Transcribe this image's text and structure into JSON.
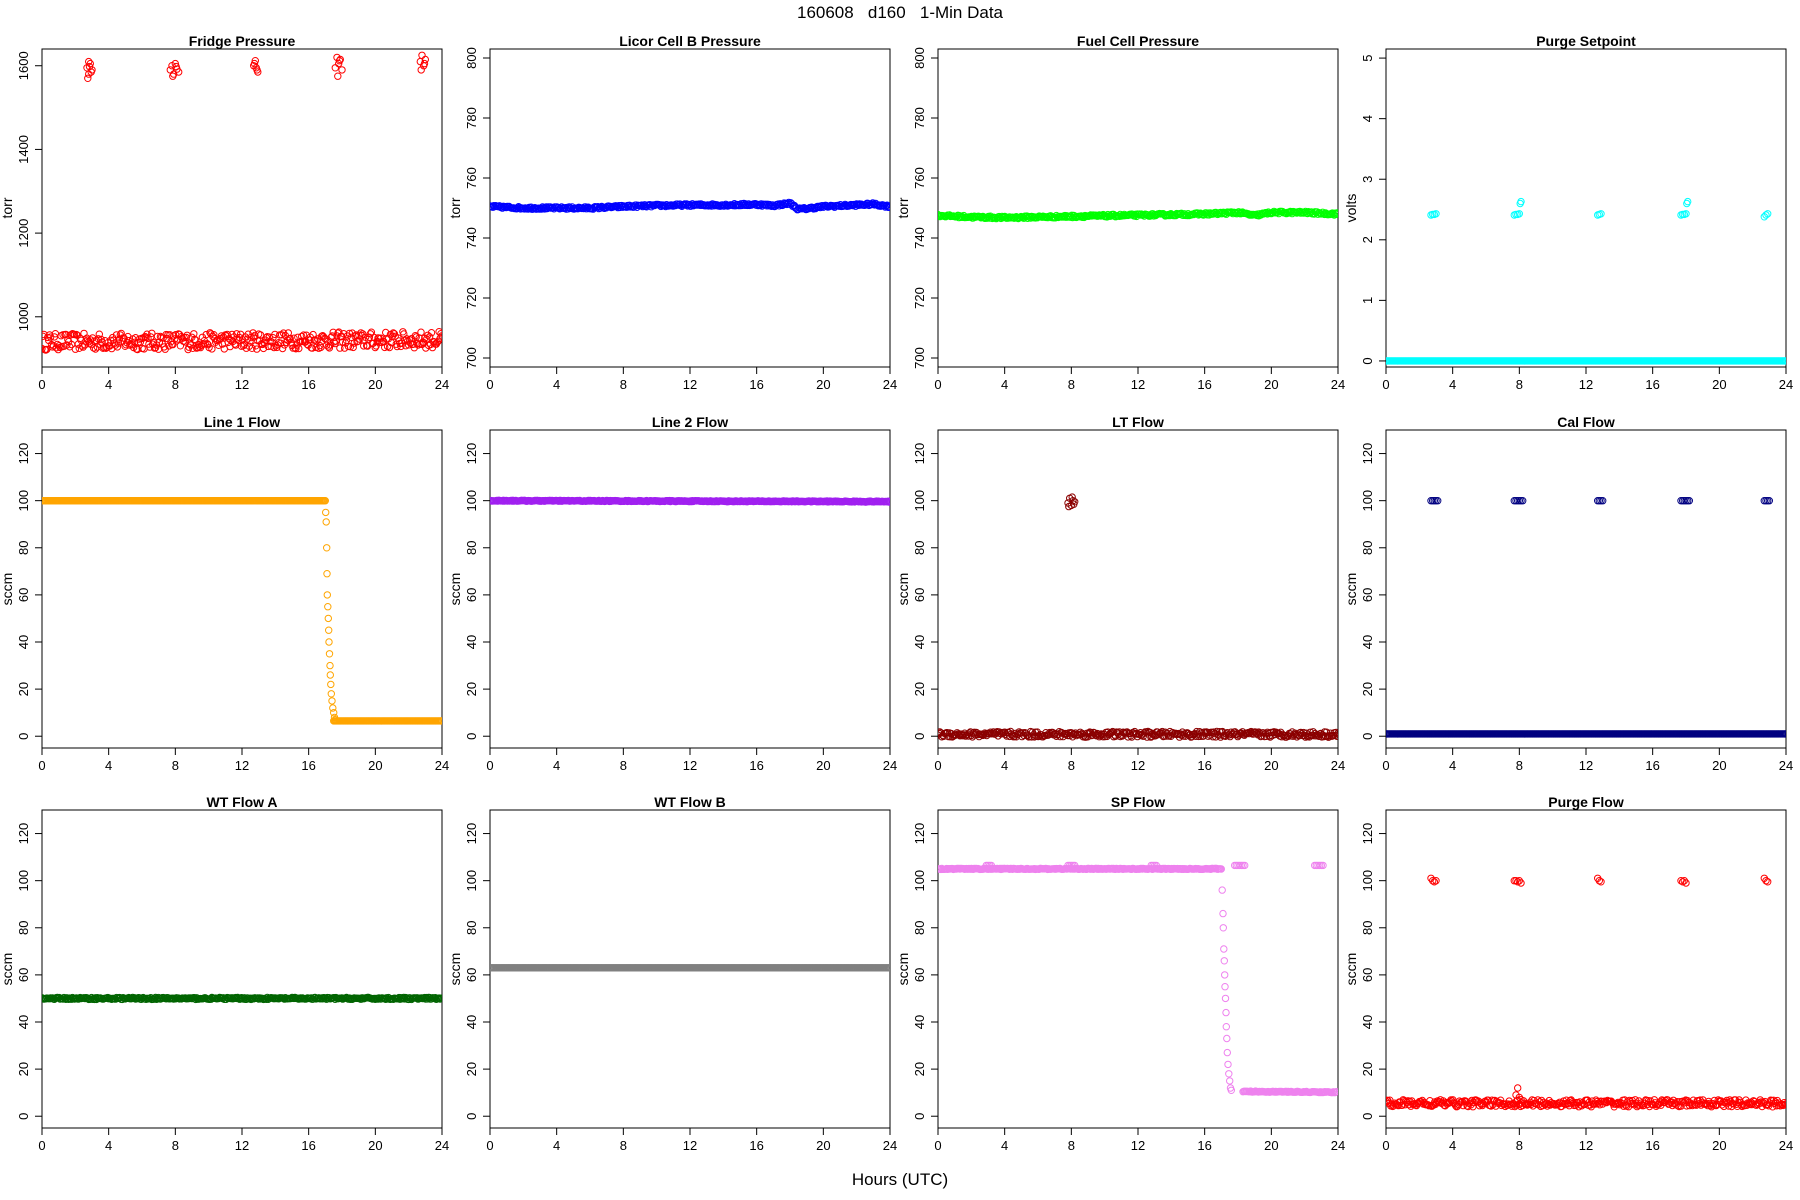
{
  "header": {
    "title": "160608   d160   1-Min Data"
  },
  "footer": {
    "xlabel": "Hours (UTC)"
  },
  "chart_data": [
    {
      "type": "scatter",
      "title": "Fridge Pressure",
      "ylabel": "torr",
      "color": "#ff0000",
      "xlim": [
        0,
        24
      ],
      "ylim": [
        880,
        1640
      ],
      "xticks": [
        0,
        4,
        8,
        12,
        16,
        20,
        24
      ],
      "yticks": [
        1000,
        1200,
        1400,
        1600
      ],
      "series": [
        {
          "x": [
            0,
            24
          ],
          "y": [
            940,
            945
          ],
          "pattern": "flat",
          "noise": 20
        },
        {
          "x": [
            2.7,
            2.8,
            2.9,
            3.0,
            2.75,
            2.85,
            2.95,
            2.8
          ],
          "y": [
            1595,
            1580,
            1605,
            1590,
            1570,
            1598,
            1585,
            1610
          ]
        },
        {
          "x": [
            7.7,
            7.8,
            7.9,
            8.0,
            8.1,
            8.2,
            7.85,
            8.05
          ],
          "y": [
            1590,
            1600,
            1580,
            1605,
            1592,
            1585,
            1575,
            1598
          ]
        },
        {
          "x": [
            12.7,
            12.8,
            12.9,
            12.75,
            12.85,
            12.95
          ],
          "y": [
            1600,
            1612,
            1590,
            1605,
            1595,
            1585
          ]
        },
        {
          "x": [
            17.6,
            17.7,
            17.8,
            17.9,
            18.0,
            17.75,
            17.85
          ],
          "y": [
            1595,
            1620,
            1605,
            1615,
            1590,
            1575,
            1612
          ]
        },
        {
          "x": [
            22.7,
            22.8,
            22.9,
            23.0,
            22.75,
            22.95
          ],
          "y": [
            1610,
            1625,
            1600,
            1615,
            1590,
            1605
          ]
        }
      ]
    },
    {
      "type": "scatter",
      "title": "Licor Cell B Pressure",
      "ylabel": "torr",
      "color": "#0000ff",
      "xlim": [
        0,
        24
      ],
      "ylim": [
        697,
        803
      ],
      "xticks": [
        0,
        4,
        8,
        12,
        16,
        20,
        24
      ],
      "yticks": [
        700,
        720,
        740,
        760,
        780,
        800
      ],
      "series": [
        {
          "x": [
            0,
            2,
            4,
            6,
            8,
            10,
            12,
            14,
            16,
            17,
            18,
            18.5,
            19,
            20,
            22,
            23,
            24
          ],
          "y": [
            750.5,
            750,
            750,
            750,
            750.5,
            750.8,
            751,
            751,
            751.2,
            750.8,
            751.6,
            749.6,
            749.8,
            750.5,
            751,
            751.3,
            750.5
          ],
          "pattern": "line",
          "noise": 0.4
        }
      ]
    },
    {
      "type": "scatter",
      "title": "Fuel Cell Pressure",
      "ylabel": "torr",
      "color": "#00ff00",
      "xlim": [
        0,
        24
      ],
      "ylim": [
        697,
        803
      ],
      "xticks": [
        0,
        4,
        8,
        12,
        16,
        20,
        24
      ],
      "yticks": [
        700,
        720,
        740,
        760,
        780,
        800
      ],
      "series": [
        {
          "x": [
            0,
            2,
            4,
            6,
            8,
            10,
            12,
            14,
            16,
            18,
            19,
            20,
            22,
            24
          ],
          "y": [
            747.5,
            747,
            746.8,
            747,
            747.2,
            747.4,
            747.6,
            747.8,
            748,
            748.5,
            747.5,
            748.5,
            748.5,
            748
          ],
          "pattern": "line",
          "noise": 0.4
        }
      ]
    },
    {
      "type": "scatter",
      "title": "Purge Setpoint",
      "ylabel": "volts",
      "color": "#00ffff",
      "xlim": [
        0,
        24
      ],
      "ylim": [
        -0.1,
        5.15
      ],
      "xticks": [
        0,
        4,
        8,
        12,
        16,
        20,
        24
      ],
      "yticks": [
        0,
        1,
        2,
        3,
        4,
        5
      ],
      "series": [
        {
          "x": [
            0,
            24
          ],
          "y": [
            0,
            0
          ],
          "pattern": "flat",
          "noise": 0
        },
        {
          "x": [
            2.7,
            2.8,
            2.9,
            3.0
          ],
          "y": [
            2.41,
            2.42,
            2.42,
            2.43
          ]
        },
        {
          "x": [
            7.7,
            7.8,
            7.9,
            8.0,
            8.05,
            8.1
          ],
          "y": [
            2.41,
            2.42,
            2.42,
            2.43,
            2.6,
            2.63
          ]
        },
        {
          "x": [
            12.7,
            12.8,
            12.9
          ],
          "y": [
            2.41,
            2.42,
            2.43
          ]
        },
        {
          "x": [
            17.7,
            17.8,
            17.9,
            18.0,
            18.05,
            18.1
          ],
          "y": [
            2.41,
            2.42,
            2.42,
            2.43,
            2.6,
            2.63
          ]
        },
        {
          "x": [
            22.7,
            22.8,
            22.9
          ],
          "y": [
            2.38,
            2.41,
            2.43
          ]
        }
      ]
    },
    {
      "type": "scatter",
      "title": "Line 1 Flow",
      "ylabel": "sccm",
      "color": "#ffa500",
      "xlim": [
        0,
        24
      ],
      "ylim": [
        -5,
        130
      ],
      "xticks": [
        0,
        4,
        8,
        12,
        16,
        20,
        24
      ],
      "yticks": [
        0,
        20,
        40,
        60,
        80,
        100,
        120
      ],
      "series": [
        {
          "x": [
            0,
            17
          ],
          "y": [
            100,
            100
          ],
          "pattern": "flat",
          "noise": 0
        },
        {
          "x": [
            17.02,
            17.05,
            17.08,
            17.1,
            17.12,
            17.15,
            17.18,
            17.2,
            17.22,
            17.25,
            17.28,
            17.3,
            17.33,
            17.36,
            17.4,
            17.45,
            17.5,
            17.55,
            17.6
          ],
          "y": [
            95,
            91,
            80,
            69,
            60,
            55,
            50,
            45,
            40,
            35,
            30,
            26,
            22,
            18,
            15,
            12,
            10,
            8,
            7
          ]
        },
        {
          "x": [
            17.5,
            24
          ],
          "y": [
            6.5,
            6.5
          ],
          "pattern": "flat",
          "noise": 0
        }
      ]
    },
    {
      "type": "scatter",
      "title": "Line 2 Flow",
      "ylabel": "sccm",
      "color": "#a020f0",
      "xlim": [
        0,
        24
      ],
      "ylim": [
        -5,
        130
      ],
      "xticks": [
        0,
        4,
        8,
        12,
        16,
        20,
        24
      ],
      "yticks": [
        0,
        20,
        40,
        60,
        80,
        100,
        120
      ],
      "series": [
        {
          "x": [
            0,
            24
          ],
          "y": [
            100,
            99.6
          ],
          "pattern": "flat",
          "noise": 0.2
        }
      ]
    },
    {
      "type": "scatter",
      "title": "LT Flow",
      "ylabel": "sccm",
      "color": "#8b0000",
      "xlim": [
        0,
        24
      ],
      "ylim": [
        -5,
        130
      ],
      "xticks": [
        0,
        4,
        8,
        12,
        16,
        20,
        24
      ],
      "yticks": [
        0,
        20,
        40,
        60,
        80,
        100,
        120
      ],
      "series": [
        {
          "x": [
            0,
            24
          ],
          "y": [
            0.8,
            0.8
          ],
          "pattern": "flat",
          "noise": 1.2
        },
        {
          "x": [
            7.8,
            7.9,
            8.0,
            8.1,
            8.2,
            7.85,
            8.05,
            8.15
          ],
          "y": [
            99,
            101,
            98,
            100,
            99.5,
            97.5,
            101.5,
            98.5
          ]
        }
      ]
    },
    {
      "type": "scatter",
      "title": "Cal Flow",
      "ylabel": "sccm",
      "color": "#000080",
      "xlim": [
        0,
        24
      ],
      "ylim": [
        -5,
        130
      ],
      "xticks": [
        0,
        4,
        8,
        12,
        16,
        20,
        24
      ],
      "yticks": [
        0,
        20,
        40,
        60,
        80,
        100,
        120
      ],
      "series": [
        {
          "x": [
            0,
            24
          ],
          "y": [
            1,
            1
          ],
          "pattern": "flat",
          "noise": 0
        },
        {
          "x": [
            2.7,
            2.8,
            2.9,
            3.0,
            3.1
          ],
          "y": [
            100,
            100,
            100,
            100,
            100
          ]
        },
        {
          "x": [
            7.7,
            7.8,
            7.9,
            8.0,
            8.1,
            8.2
          ],
          "y": [
            100,
            100,
            100,
            100,
            100,
            100
          ]
        },
        {
          "x": [
            12.7,
            12.8,
            12.9,
            13.0
          ],
          "y": [
            100,
            100,
            100,
            100
          ]
        },
        {
          "x": [
            17.7,
            17.8,
            17.9,
            18.0,
            18.1,
            18.2
          ],
          "y": [
            100,
            100,
            100,
            100,
            100,
            100
          ]
        },
        {
          "x": [
            22.7,
            22.8,
            22.9,
            23.0
          ],
          "y": [
            100,
            100,
            100,
            100
          ]
        }
      ]
    },
    {
      "type": "scatter",
      "title": "WT Flow A",
      "ylabel": "sccm",
      "color": "#006400",
      "xlim": [
        0,
        24
      ],
      "ylim": [
        -5,
        130
      ],
      "xticks": [
        0,
        4,
        8,
        12,
        16,
        20,
        24
      ],
      "yticks": [
        0,
        20,
        40,
        60,
        80,
        100,
        120
      ],
      "series": [
        {
          "x": [
            0,
            24
          ],
          "y": [
            50,
            50
          ],
          "pattern": "flat",
          "noise": 0.4
        }
      ]
    },
    {
      "type": "scatter",
      "title": "WT Flow B",
      "ylabel": "sccm",
      "color": "#808080",
      "xlim": [
        0,
        24
      ],
      "ylim": [
        -5,
        130
      ],
      "xticks": [
        0,
        4,
        8,
        12,
        16,
        20,
        24
      ],
      "yticks": [
        0,
        20,
        40,
        60,
        80,
        100,
        120
      ],
      "series": [
        {
          "x": [
            0,
            24
          ],
          "y": [
            63,
            63
          ],
          "pattern": "flat",
          "noise": 0
        }
      ]
    },
    {
      "type": "scatter",
      "title": "SP Flow",
      "ylabel": "sccm",
      "color": "#ee82ee",
      "xlim": [
        0,
        24
      ],
      "ylim": [
        -5,
        130
      ],
      "xticks": [
        0,
        4,
        8,
        12,
        16,
        20,
        24
      ],
      "yticks": [
        0,
        20,
        40,
        60,
        80,
        100,
        120
      ],
      "series": [
        {
          "x": [
            0,
            17
          ],
          "y": [
            105,
            105
          ],
          "pattern": "flat",
          "noise": 0.2
        },
        {
          "x": [
            2.9,
            3.0,
            3.1,
            3.2,
            7.8,
            7.9,
            8.0,
            8.1,
            8.2,
            12.8,
            12.9,
            13.0,
            13.1
          ],
          "y": [
            106.5,
            106.5,
            106.5,
            106.5,
            106.5,
            106.5,
            106.5,
            106.5,
            106.5,
            106.5,
            106.5,
            106.5,
            106.5
          ]
        },
        {
          "x": [
            17.05,
            17.1,
            17.12,
            17.15,
            17.18,
            17.2,
            17.22,
            17.25,
            17.28,
            17.3,
            17.33,
            17.36,
            17.4,
            17.45,
            17.5,
            17.55,
            17.6
          ],
          "y": [
            96,
            86,
            80,
            71,
            66,
            60,
            55,
            50,
            44,
            38,
            33,
            27,
            22,
            18,
            15,
            12,
            11
          ]
        },
        {
          "x": [
            17.8,
            17.9,
            18.0,
            18.1,
            18.2,
            18.3,
            18.4
          ],
          "y": [
            106.5,
            106.5,
            106.5,
            106.5,
            106.5,
            106.5,
            106.5
          ]
        },
        {
          "x": [
            18.3,
            23.9
          ],
          "y": [
            10.5,
            10.2
          ],
          "pattern": "flat",
          "noise": 0.2
        },
        {
          "x": [
            22.6,
            22.7,
            22.8,
            22.9,
            23.0,
            23.1
          ],
          "y": [
            106.5,
            106.5,
            106.5,
            106.5,
            106.5,
            106.5
          ]
        }
      ]
    },
    {
      "type": "scatter",
      "title": "Purge Flow",
      "ylabel": "sccm",
      "color": "#ff0000",
      "xlim": [
        0,
        24
      ],
      "ylim": [
        -5,
        130
      ],
      "xticks": [
        0,
        4,
        8,
        12,
        16,
        20,
        24
      ],
      "yticks": [
        0,
        20,
        40,
        60,
        80,
        100,
        120
      ],
      "series": [
        {
          "x": [
            0,
            24
          ],
          "y": [
            5.5,
            5.5
          ],
          "pattern": "flat",
          "noise": 1.5
        },
        {
          "x": [
            7.8,
            7.9,
            8.0,
            8.1
          ],
          "y": [
            9,
            12,
            8,
            7
          ]
        },
        {
          "x": [
            2.7,
            2.8,
            2.9,
            3.0
          ],
          "y": [
            101,
            100,
            99.5,
            100
          ]
        },
        {
          "x": [
            7.7,
            7.8,
            7.9,
            8.0,
            8.1
          ],
          "y": [
            100,
            100,
            99.5,
            100,
            99
          ]
        },
        {
          "x": [
            12.7,
            12.8,
            12.9
          ],
          "y": [
            101,
            100,
            99.5
          ]
        },
        {
          "x": [
            17.7,
            17.8,
            17.9,
            18.0
          ],
          "y": [
            100,
            99.5,
            100,
            99
          ]
        },
        {
          "x": [
            22.7,
            22.8,
            22.9
          ],
          "y": [
            101,
            100,
            99.5
          ]
        }
      ]
    }
  ]
}
